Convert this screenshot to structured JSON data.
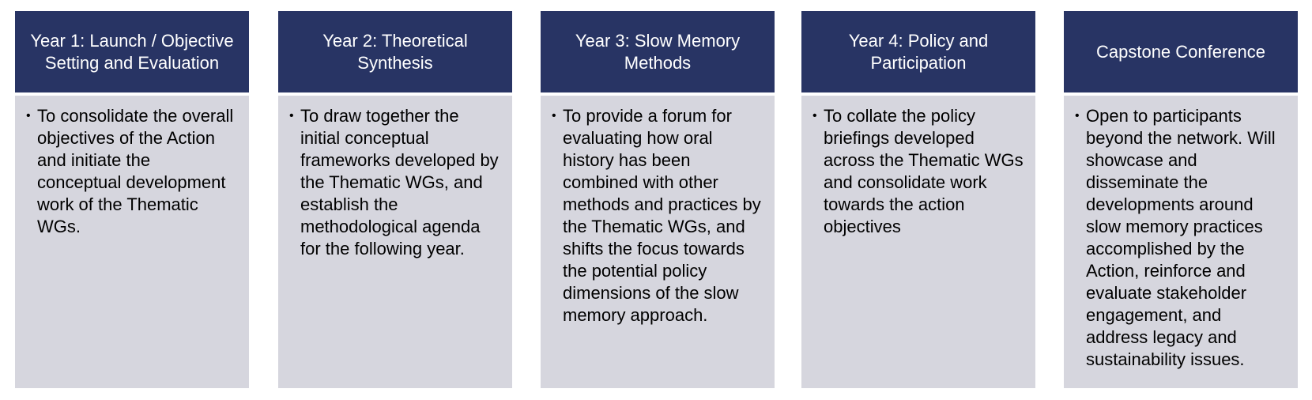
{
  "columns": [
    {
      "heading": "Year 1: Launch / Objective Setting and Evaluation",
      "text": "To consolidate the overall objectives of the Action and initiate the conceptual development work of the Thematic WGs."
    },
    {
      "heading": "Year 2: Theoretical Synthesis",
      "text": "To draw together the initial conceptual frameworks developed by the Thematic WGs, and establish the methodological agenda for the following year."
    },
    {
      "heading": "Year 3: Slow Memory Methods",
      "text": "To provide a forum for evaluating how oral history has been combined with other methods and practices by the Thematic WGs, and shifts the focus towards the potential policy dimensions of the slow memory approach."
    },
    {
      "heading": "Year 4: Policy and Participation",
      "text": "To collate the policy briefings developed across the Thematic WGs and consolidate work towards the action objectives"
    },
    {
      "heading": "Capstone Conference",
      "text": "Open to participants beyond the network. Will showcase and disseminate the developments around slow memory practices accomplished by the Action, reinforce and evaluate stakeholder engagement, and address legacy and sustainability issues."
    }
  ],
  "colors": {
    "header_bg": "#283464",
    "header_text": "#ffffff",
    "body_bg": "#d6d6de",
    "body_text": "#000000"
  }
}
